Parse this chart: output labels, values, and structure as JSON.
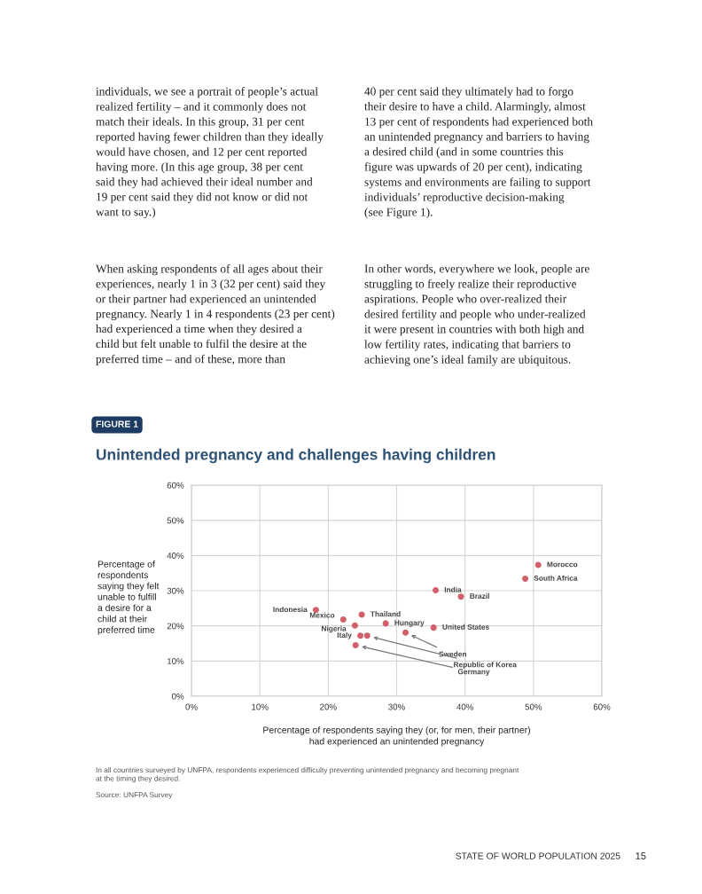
{
  "chart_data": {
    "type": "scatter",
    "title": "Unintended pregnancy and challenges having children",
    "xlabel": "Percentage of respondents saying they (or, for men, their partner)\nhad experienced an unintended pregnancy",
    "ylabel": "Percentage of\nrespondents\nsaying they felt\nunable to fulfill\na desire for a\nchild at their\npreferred time",
    "x": [
      50.7,
      48.8,
      35.7,
      39.4,
      18.2,
      24.9,
      22.2,
      28.4,
      23.9,
      35.4,
      31.3,
      24.7,
      25.7,
      24.0
    ],
    "series": [
      {
        "color": "#d2606b",
        "values": [
          37.3,
          33.4,
          30.1,
          28.3,
          24.5,
          23.2,
          21.8,
          20.7,
          20.1,
          19.5,
          18.1,
          17.2,
          17.2,
          14.5
        ]
      }
    ],
    "xlim": [
      0,
      60
    ],
    "ylim": [
      0,
      60
    ],
    "xticks": [
      {
        "value": 0,
        "label": "0%"
      },
      {
        "value": 10,
        "label": "10%"
      },
      {
        "value": 20,
        "label": "20%"
      },
      {
        "value": 30,
        "label": "30%"
      },
      {
        "value": 40,
        "label": "40%"
      },
      {
        "value": 50,
        "label": "50%"
      },
      {
        "value": 60,
        "label": "60%"
      }
    ],
    "yticks": [
      {
        "value": 0,
        "label": "0%"
      },
      {
        "value": 10,
        "label": "10%"
      },
      {
        "value": 20,
        "label": "20%"
      },
      {
        "value": 30,
        "label": "30%"
      },
      {
        "value": 40,
        "label": "40%"
      },
      {
        "value": 50,
        "label": "50%"
      },
      {
        "value": 60,
        "label": "60%"
      }
    ],
    "grid": true,
    "marker": "circle",
    "annotations": [
      "individuals, we see a portrait of people’s actual\nrealized fertility – and it commonly does not\nmatch their ideals. In this group, 31 per cent\nreported having fewer children than they ideally\nwould have chosen, and 12 per cent reported\nhaving more. (In this age group, 38 per cent\nsaid they had achieved their ideal number and\n19 per cent said they did not know or did not\nwant to say.)",
      "When asking respondents of all ages about their\nexperiences, nearly 1 in 3 (32 per cent) said they\nor their partner had experienced an unintended\npregnancy. Nearly 1 in 4 respondents (23 per cent)\nhad experienced a time when they desired a\nchild but felt unable to fulfil the desire at the\npreferred time – and of these, more than",
      "40 per cent said they ultimately had to forgo\ntheir desire to have a child. Alarmingly, almost\n13 per cent of respondents had experienced both\nan unintended pregnancy and barriers to having\na desired child (and in some countries this\nfigure was upwards of 20 per cent), indicating\nsystems and environments are failing to support\nindividuals’ reproductive decision-making\n(see Figure 1).",
      "In other words, everywhere we look, people are\nstruggling to freely realize their reproductive\naspirations. People who over-realized their\ndesired fertility and people who under-realized\nit were present in countries with both high and\nlow fertility rates, indicating that barriers to\nachieving one’s ideal family are ubiquitous.",
      "FIGURE 1",
      {
        "text": "Morocco",
        "x": 50.7,
        "y": 37.3
      },
      {
        "text": "South Africa",
        "x": 48.8,
        "y": 33.4
      },
      {
        "text": "India",
        "x": 35.7,
        "y": 30.1
      },
      {
        "text": "Brazil",
        "x": 39.4,
        "y": 28.3
      },
      {
        "text": "Indonesia",
        "x": 18.2,
        "y": 24.5
      },
      {
        "text": "Thailand",
        "x": 24.9,
        "y": 23.2
      },
      {
        "text": "Mexico",
        "x": 22.2,
        "y": 21.8
      },
      {
        "text": "Hungary",
        "x": 28.4,
        "y": 20.7
      },
      {
        "text": "Nigeria",
        "x": 23.9,
        "y": 20.1
      },
      {
        "text": "United States",
        "x": 35.4,
        "y": 19.5
      },
      {
        "text": "Sweden",
        "x": 31.3,
        "y": 18.1
      },
      {
        "text": "Italy",
        "x": 24.7,
        "y": 17.2
      },
      {
        "text": "Republic of Korea",
        "x": 25.7,
        "y": 17.2
      },
      {
        "text": "Germany",
        "x": 24.0,
        "y": 14.5
      },
      "In all countries surveyed by UNFPA, respondents experienced difficulty preventing unintended pregnancy and becoming pregnant\nat the timing they desired.",
      "Source: UNFPA Survey",
      "STATE OF WORLD POPULATION 2025",
      "15"
    ]
  }
}
